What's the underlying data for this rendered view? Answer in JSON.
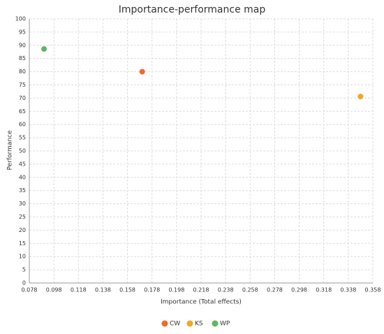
{
  "chart_data": {
    "type": "scatter",
    "title": "Importance-performance map",
    "x_label": "Importance (Total effects)",
    "y_label": "Performance",
    "series": [
      {
        "name": "CW",
        "color": "#f06a28",
        "x": [
          0.17
        ],
        "values": [
          80.0
        ]
      },
      {
        "name": "KS",
        "color": "#f5a623",
        "x": [
          0.348
        ],
        "values": [
          70.6
        ]
      },
      {
        "name": "WP",
        "color": "#5cb85c",
        "x": [
          0.09
        ],
        "values": [
          88.6
        ]
      }
    ],
    "xlim": [
      0.078,
      0.358
    ],
    "xticks": [
      0.078,
      0.098,
      0.118,
      0.138,
      0.158,
      0.178,
      0.198,
      0.218,
      0.238,
      0.258,
      0.278,
      0.298,
      0.318,
      0.338,
      0.358
    ],
    "ylim": [
      0,
      100
    ],
    "yticks": [
      0,
      5,
      10,
      15,
      20,
      25,
      30,
      35,
      40,
      45,
      50,
      55,
      60,
      65,
      70,
      75,
      80,
      85,
      90,
      95,
      100
    ],
    "grid": true,
    "legend": "bottom"
  }
}
